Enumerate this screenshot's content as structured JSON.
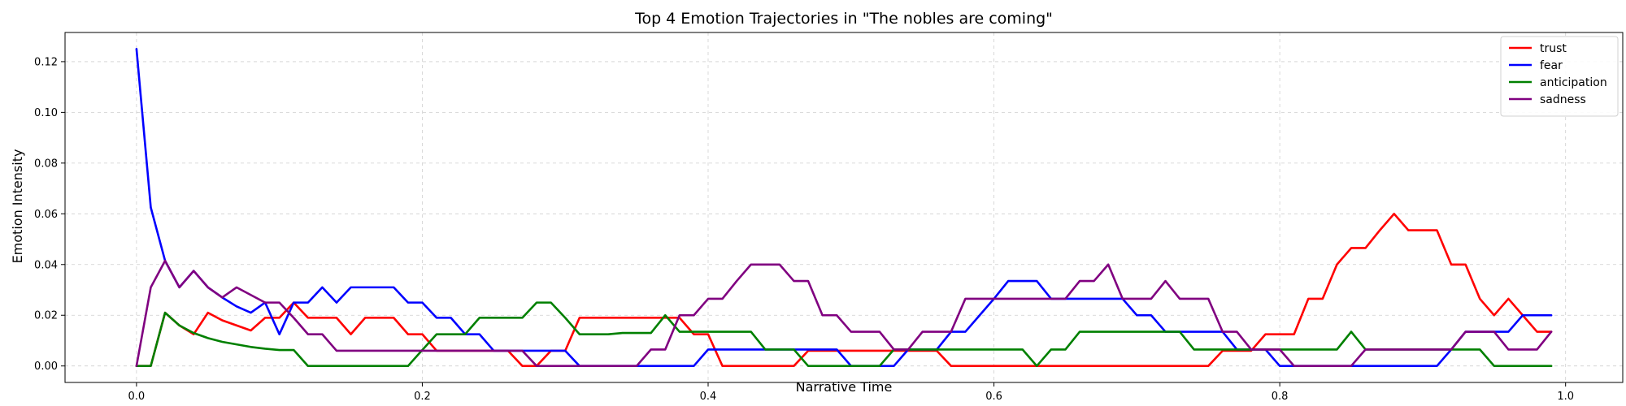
{
  "chart_data": {
    "type": "line",
    "title": "Top 4 Emotion Trajectories in \"The nobles are coming\"",
    "xlabel": "Narrative Time",
    "ylabel": "Emotion Intensity",
    "xlim": [
      -0.05,
      1.04
    ],
    "ylim": [
      -0.0065,
      0.1315
    ],
    "xticks": [
      0.0,
      0.2,
      0.4,
      0.6,
      0.8,
      1.0
    ],
    "xtick_labels": [
      "0.0",
      "0.2",
      "0.4",
      "0.6",
      "0.8",
      "1.0"
    ],
    "yticks": [
      0.0,
      0.02,
      0.04,
      0.06,
      0.08,
      0.1,
      0.12
    ],
    "ytick_labels": [
      "0.00",
      "0.02",
      "0.04",
      "0.06",
      "0.08",
      "0.10",
      "0.12"
    ],
    "grid": true,
    "legend_position": "top-right",
    "x_start": 0.0,
    "x_step": 0.01,
    "series": [
      {
        "name": "trust",
        "color": "#ff0000",
        "values": [
          0.0,
          0.0,
          0.021,
          0.016,
          0.0125,
          0.021,
          0.018,
          0.016,
          0.014,
          0.019,
          0.019,
          0.025,
          0.019,
          0.019,
          0.019,
          0.0125,
          0.019,
          0.019,
          0.019,
          0.0125,
          0.0125,
          0.006,
          0.006,
          0.006,
          0.006,
          0.006,
          0.006,
          0.0,
          0.0,
          0.006,
          0.006,
          0.019,
          0.019,
          0.019,
          0.019,
          0.019,
          0.019,
          0.019,
          0.019,
          0.0125,
          0.0125,
          0.0,
          0.0,
          0.0,
          0.0,
          0.0,
          0.0,
          0.006,
          0.006,
          0.006,
          0.006,
          0.006,
          0.006,
          0.006,
          0.006,
          0.006,
          0.006,
          0.0,
          0.0,
          0.0,
          0.0,
          0.0,
          0.0,
          0.0,
          0.0,
          0.0,
          0.0,
          0.0,
          0.0,
          0.0,
          0.0,
          0.0,
          0.0,
          0.0,
          0.0,
          0.0,
          0.006,
          0.006,
          0.006,
          0.0125,
          0.0125,
          0.0125,
          0.0265,
          0.0265,
          0.04,
          0.0465,
          0.0465,
          0.0535,
          0.06,
          0.0535,
          0.0535,
          0.0535,
          0.04,
          0.04,
          0.0265,
          0.02,
          0.0265,
          0.02,
          0.0135,
          0.0135
        ]
      },
      {
        "name": "fear",
        "color": "#0000ff",
        "values": [
          0.125,
          0.0625,
          0.0415,
          0.031,
          0.0375,
          0.031,
          0.027,
          0.0235,
          0.021,
          0.025,
          0.0125,
          0.025,
          0.025,
          0.031,
          0.025,
          0.031,
          0.031,
          0.031,
          0.031,
          0.025,
          0.025,
          0.019,
          0.019,
          0.0125,
          0.0125,
          0.006,
          0.006,
          0.006,
          0.006,
          0.006,
          0.006,
          0.0,
          0.0,
          0.0,
          0.0,
          0.0,
          0.0,
          0.0,
          0.0,
          0.0,
          0.0065,
          0.0065,
          0.0065,
          0.0065,
          0.0065,
          0.0065,
          0.0065,
          0.0065,
          0.0065,
          0.0065,
          0.0,
          0.0,
          0.0,
          0.0,
          0.0065,
          0.0065,
          0.0065,
          0.0135,
          0.0135,
          0.02,
          0.0265,
          0.0335,
          0.0335,
          0.0335,
          0.0265,
          0.0265,
          0.0265,
          0.0265,
          0.0265,
          0.0265,
          0.02,
          0.02,
          0.0135,
          0.0135,
          0.0135,
          0.0135,
          0.0135,
          0.0065,
          0.0065,
          0.0065,
          0.0,
          0.0,
          0.0,
          0.0,
          0.0,
          0.0,
          0.0,
          0.0,
          0.0,
          0.0,
          0.0,
          0.0,
          0.0065,
          0.0135,
          0.0135,
          0.0135,
          0.0135,
          0.02,
          0.02,
          0.02
        ]
      },
      {
        "name": "anticipation",
        "color": "#008000",
        "values": [
          0.0,
          0.0,
          0.021,
          0.016,
          0.013,
          0.011,
          0.0095,
          0.0085,
          0.0075,
          0.0068,
          0.0063,
          0.0063,
          0.0,
          0.0,
          0.0,
          0.0,
          0.0,
          0.0,
          0.0,
          0.0,
          0.0063,
          0.0125,
          0.0125,
          0.0125,
          0.019,
          0.019,
          0.019,
          0.019,
          0.025,
          0.025,
          0.019,
          0.0125,
          0.0125,
          0.0125,
          0.013,
          0.013,
          0.013,
          0.02,
          0.0135,
          0.0135,
          0.0135,
          0.0135,
          0.0135,
          0.0135,
          0.0065,
          0.0065,
          0.0065,
          0.0,
          0.0,
          0.0,
          0.0,
          0.0,
          0.0,
          0.0065,
          0.0065,
          0.0065,
          0.0065,
          0.0065,
          0.0065,
          0.0065,
          0.0065,
          0.0065,
          0.0065,
          0.0,
          0.0065,
          0.0065,
          0.0135,
          0.0135,
          0.0135,
          0.0135,
          0.0135,
          0.0135,
          0.0135,
          0.0135,
          0.0065,
          0.0065,
          0.0065,
          0.0065,
          0.0065,
          0.0065,
          0.0065,
          0.0065,
          0.0065,
          0.0065,
          0.0065,
          0.0135,
          0.0065,
          0.0065,
          0.0065,
          0.0065,
          0.0065,
          0.0065,
          0.0065,
          0.0065,
          0.0065,
          0.0,
          0.0,
          0.0,
          0.0,
          0.0
        ]
      },
      {
        "name": "sadness",
        "color": "#800080",
        "values": [
          0.0,
          0.031,
          0.0415,
          0.031,
          0.0375,
          0.031,
          0.027,
          0.031,
          0.028,
          0.025,
          0.025,
          0.019,
          0.0125,
          0.0125,
          0.006,
          0.006,
          0.006,
          0.006,
          0.006,
          0.006,
          0.006,
          0.006,
          0.006,
          0.006,
          0.006,
          0.006,
          0.006,
          0.006,
          0.0,
          0.0,
          0.0,
          0.0,
          0.0,
          0.0,
          0.0,
          0.0,
          0.0065,
          0.0065,
          0.02,
          0.02,
          0.0265,
          0.0265,
          0.0335,
          0.04,
          0.04,
          0.04,
          0.0335,
          0.0335,
          0.02,
          0.02,
          0.0135,
          0.0135,
          0.0135,
          0.0065,
          0.0065,
          0.0135,
          0.0135,
          0.0135,
          0.0265,
          0.0265,
          0.0265,
          0.0265,
          0.0265,
          0.0265,
          0.0265,
          0.0265,
          0.0335,
          0.0335,
          0.04,
          0.0265,
          0.0265,
          0.0265,
          0.0335,
          0.0265,
          0.0265,
          0.0265,
          0.0135,
          0.0135,
          0.0065,
          0.0065,
          0.0065,
          0.0,
          0.0,
          0.0,
          0.0,
          0.0,
          0.0065,
          0.0065,
          0.0065,
          0.0065,
          0.0065,
          0.0065,
          0.0065,
          0.0135,
          0.0135,
          0.0135,
          0.0065,
          0.0065,
          0.0065,
          0.0135
        ]
      }
    ]
  }
}
